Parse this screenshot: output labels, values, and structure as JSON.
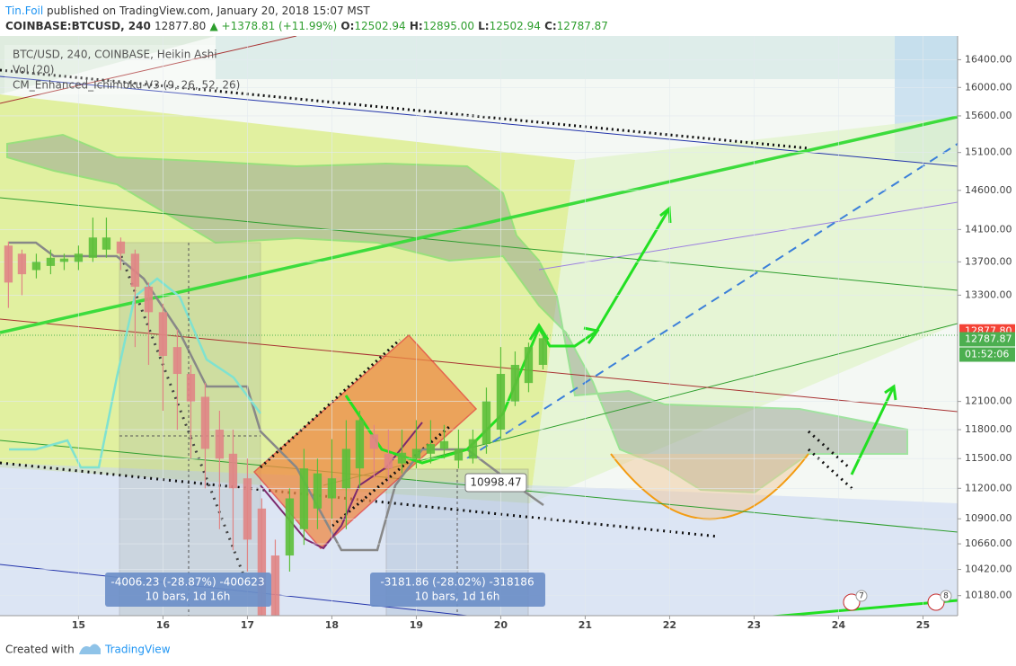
{
  "header": {
    "author": "Tin.Foil",
    "published": "published on TradingView.com, January 20, 2018 15:07 MST",
    "symbol": "COINBASE:BTCUSD, 240",
    "last": "12877.80",
    "change": "▲ +1378.81 (+11.99%)",
    "ohlc": [
      [
        "O:",
        "12502.94"
      ],
      [
        "H:",
        "12895.00"
      ],
      [
        "L:",
        "12502.94"
      ],
      [
        "C:",
        "12787.87"
      ]
    ]
  },
  "legend": [
    "BTC/USD, 240, COINBASE, Heikin Ashi",
    "Vol (20)",
    "CM_Enhanced_Ichimoku-V3 (9, 26, 52, 26)"
  ],
  "chart_data": {
    "type": "candlestick",
    "x": [
      14.17,
      14.33,
      14.5,
      14.67,
      14.83,
      15,
      15.17,
      15.33,
      15.5,
      15.67,
      15.83,
      16,
      16.17,
      16.33,
      16.5,
      16.67,
      16.83,
      17,
      17.17,
      17.33,
      17.5,
      17.67,
      17.83,
      18,
      18.17,
      18.33,
      18.5,
      18.67,
      18.83,
      19,
      19.17,
      19.33,
      19.5,
      19.67,
      19.83,
      20,
      20.17,
      20.33,
      20.5
    ],
    "open": [
      13900,
      13800,
      13600,
      13650,
      13700,
      13700,
      13750,
      13850,
      13950,
      13800,
      13400,
      13100,
      12700,
      12400,
      12150,
      11800,
      11550,
      11300,
      11000,
      10550,
      10550,
      10800,
      11000,
      11100,
      11200,
      11400,
      11750,
      11550,
      11450,
      11500,
      11550,
      11600,
      11480,
      11500,
      11650,
      11800,
      12100,
      12300,
      12500
    ],
    "high": [
      13950,
      13850,
      13800,
      13850,
      13800,
      13900,
      14250,
      14250,
      14000,
      13850,
      13450,
      13200,
      12900,
      12500,
      12300,
      12000,
      11800,
      11500,
      11100,
      10700,
      11200,
      11600,
      11500,
      11700,
      11900,
      12000,
      11850,
      11800,
      11800,
      11900,
      11900,
      11850,
      11800,
      11800,
      12250,
      12700,
      12650,
      12750,
      12850
    ],
    "low": [
      13150,
      13300,
      13500,
      13550,
      13600,
      13600,
      13700,
      13750,
      13600,
      12700,
      12500,
      12000,
      11800,
      11500,
      11200,
      10800,
      10600,
      10400,
      10000,
      10000,
      10400,
      10650,
      10800,
      10900,
      10800,
      11200,
      11300,
      11250,
      11350,
      11400,
      11450,
      11500,
      11400,
      11450,
      11550,
      11700,
      12050,
      12200,
      12450
    ],
    "close": [
      13450,
      13550,
      13700,
      13750,
      13740,
      13800,
      14000,
      14000,
      13800,
      13400,
      13100,
      12600,
      12400,
      12100,
      11600,
      11500,
      11200,
      10700,
      10000,
      10000,
      11100,
      11400,
      11350,
      11300,
      11600,
      11900,
      11600,
      11400,
      11560,
      11600,
      11650,
      11680,
      11600,
      11700,
      12100,
      12400,
      12500,
      12700,
      12800
    ],
    "up_color": "#5cbf3a",
    "down_color": "#e08585",
    "xlim": [
      14.07,
      25.41
    ],
    "xticks": [
      15,
      16,
      17,
      18,
      19,
      20,
      21,
      22,
      23,
      24,
      25
    ],
    "ylim": [
      10000,
      16750
    ],
    "log_scale": true,
    "grid": true,
    "yticks": [
      {
        "value": 16400,
        "label": "16400.00"
      },
      {
        "value": 16000,
        "label": "16000.00"
      },
      {
        "value": 15600,
        "label": "15600.00"
      },
      {
        "value": 15100,
        "label": "15100.00"
      },
      {
        "value": 14600,
        "label": "14600.00"
      },
      {
        "value": 14100,
        "label": "14100.00"
      },
      {
        "value": 13700,
        "label": "13700.00"
      },
      {
        "value": 13300,
        "label": "13300.00"
      },
      {
        "value": 12100,
        "label": "12100.00"
      },
      {
        "value": 11800,
        "label": "11800.00"
      },
      {
        "value": 11500,
        "label": "11500.00"
      },
      {
        "value": 11200,
        "label": "11200.00"
      },
      {
        "value": 10900,
        "label": "10900.00"
      },
      {
        "value": 10660,
        "label": "10660.00"
      },
      {
        "value": 10420,
        "label": "10420.00"
      },
      {
        "value": 10180,
        "label": "10180.00"
      }
    ],
    "price_labels": [
      {
        "value": 12877.8,
        "label": "12877.80",
        "color": "#f44336"
      },
      {
        "value": 12787.87,
        "label": "12787.87",
        "color": "#4caf50"
      }
    ],
    "countdown": "01:52:06"
  },
  "measurements": [
    {
      "text": "-4006.23 (-28.87%) -400623",
      "sub": "10 bars, 1d 16h"
    },
    {
      "text": "-3181.86 (-28.02%) -318186",
      "sub": "10 bars, 1d 16h"
    }
  ],
  "price_callout": "10998.47",
  "alerts": [
    "7",
    "8"
  ],
  "footer": {
    "created": "Created with",
    "brand": "TradingView"
  }
}
